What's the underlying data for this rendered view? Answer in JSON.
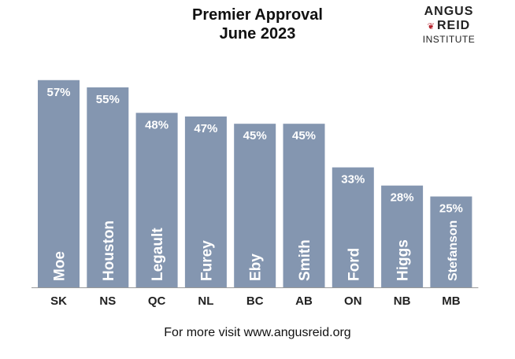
{
  "logo": {
    "line1": "ANGUS",
    "line2": "REID",
    "line3": "INSTITUTE"
  },
  "footer": "For more visit www.angusreid.org",
  "colors": {
    "bar": "#8496b0",
    "label": "#ffffff",
    "axis_text": "#222222",
    "logo_accent": "#b4202a"
  },
  "chart_data": {
    "type": "bar",
    "title": "Premier Approval",
    "subtitle": "June 2023",
    "xlabel": "",
    "ylabel": "",
    "ylim": [
      0,
      60
    ],
    "grid": false,
    "categories": [
      "SK",
      "NS",
      "QC",
      "NL",
      "BC",
      "AB",
      "ON",
      "NB",
      "MB"
    ],
    "names": [
      "Moe",
      "Houston",
      "Legault",
      "Furey",
      "Eby",
      "Smith",
      "Ford",
      "Higgs",
      "Stefanson"
    ],
    "values": [
      57,
      55,
      48,
      47,
      45,
      45,
      33,
      28,
      25
    ],
    "value_labels": [
      "57%",
      "55%",
      "48%",
      "47%",
      "45%",
      "45%",
      "33%",
      "28%",
      "25%"
    ],
    "series": [
      {
        "values": [
          57,
          55,
          48,
          47,
          45,
          45,
          33,
          28,
          25
        ]
      }
    ]
  }
}
